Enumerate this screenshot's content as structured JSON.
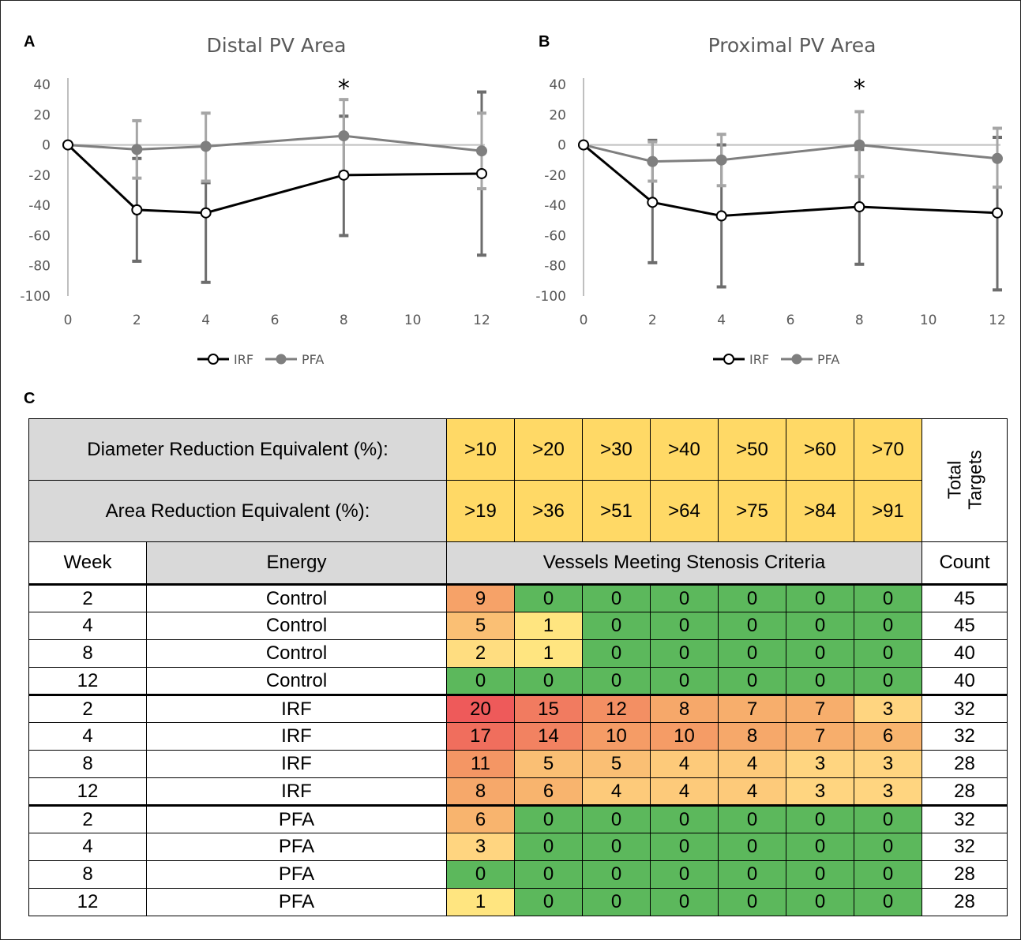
{
  "panels": {
    "A": {
      "label": "A",
      "title": "Distal PV Area"
    },
    "B": {
      "label": "B",
      "title": "Proximal PV Area"
    },
    "C": {
      "label": "C"
    }
  },
  "colors": {
    "irf": "#000000",
    "pfa": "#7f7f7f",
    "axis": "#bfbfbf",
    "yellow_header": "#ffd966",
    "grey_header": "#d9d9d9"
  },
  "chart_data": [
    {
      "type": "line",
      "title": "Distal PV Area",
      "xlabel": "",
      "ylabel": "",
      "xlim": [
        0,
        12
      ],
      "ylim": [
        -100,
        40
      ],
      "x_ticks": [
        0,
        2,
        4,
        6,
        8,
        10,
        12
      ],
      "y_ticks": [
        40,
        20,
        0,
        -20,
        -40,
        -60,
        -80,
        -100
      ],
      "legend": "bottom-center",
      "annotations": [
        {
          "text": "*",
          "x": 8
        }
      ],
      "series": [
        {
          "name": "IRF",
          "marker": "open-circle",
          "x": [
            0,
            2,
            4,
            8,
            12
          ],
          "y": [
            0,
            -43,
            -45,
            -20,
            -19
          ],
          "err_low": [
            0,
            -77,
            -91,
            -60,
            -73
          ],
          "err_high": [
            0,
            -9,
            -25,
            19,
            35
          ]
        },
        {
          "name": "PFA",
          "marker": "filled-circle",
          "x": [
            0,
            2,
            4,
            8,
            12
          ],
          "y": [
            0,
            -3,
            -1,
            6,
            -4
          ],
          "err_low": [
            0,
            -22,
            -24,
            -18,
            -29
          ],
          "err_high": [
            0,
            16,
            21,
            30,
            21
          ]
        }
      ]
    },
    {
      "type": "line",
      "title": "Proximal PV Area",
      "xlabel": "",
      "ylabel": "",
      "xlim": [
        0,
        12
      ],
      "ylim": [
        -100,
        40
      ],
      "x_ticks": [
        0,
        2,
        4,
        6,
        8,
        10,
        12
      ],
      "y_ticks": [
        40,
        20,
        0,
        -20,
        -40,
        -60,
        -80,
        -100
      ],
      "legend": "bottom-center",
      "annotations": [
        {
          "text": "*",
          "x": 8
        }
      ],
      "series": [
        {
          "name": "IRF",
          "marker": "open-circle",
          "x": [
            0,
            2,
            4,
            8,
            12
          ],
          "y": [
            0,
            -38,
            -47,
            -41,
            -45
          ],
          "err_low": [
            0,
            -78,
            -94,
            -79,
            -96
          ],
          "err_high": [
            0,
            3,
            0,
            -3,
            5
          ]
        },
        {
          "name": "PFA",
          "marker": "filled-circle",
          "x": [
            0,
            2,
            4,
            8,
            12
          ],
          "y": [
            0,
            -11,
            -10,
            0,
            -9
          ],
          "err_low": [
            0,
            -24,
            -27,
            -21,
            -28
          ],
          "err_high": [
            0,
            2,
            7,
            22,
            11
          ]
        }
      ]
    },
    {
      "type": "table",
      "header": {
        "diameter_label": "Diameter Reduction Equivalent (%):",
        "diameter": [
          ">10",
          ">20",
          ">30",
          ">40",
          ">50",
          ">60",
          ">70"
        ],
        "area_label": "Area Reduction Equivalent (%):",
        "area": [
          ">19",
          ">36",
          ">51",
          ">64",
          ">75",
          ">84",
          ">91"
        ],
        "total_label": "Total Targets",
        "week_label": "Week",
        "energy_label": "Energy",
        "vessels_label": "Vessels Meeting Stenosis Criteria",
        "count_label": "Count"
      },
      "rows": [
        {
          "week": "2",
          "energy": "Control",
          "values": [
            9,
            0,
            0,
            0,
            0,
            0,
            0
          ],
          "count": 45
        },
        {
          "week": "4",
          "energy": "Control",
          "values": [
            5,
            1,
            0,
            0,
            0,
            0,
            0
          ],
          "count": 45
        },
        {
          "week": "8",
          "energy": "Control",
          "values": [
            2,
            1,
            0,
            0,
            0,
            0,
            0
          ],
          "count": 40
        },
        {
          "week": "12",
          "energy": "Control",
          "values": [
            0,
            0,
            0,
            0,
            0,
            0,
            0
          ],
          "count": 40
        },
        {
          "week": "2",
          "energy": "IRF",
          "values": [
            20,
            15,
            12,
            8,
            7,
            7,
            3
          ],
          "count": 32
        },
        {
          "week": "4",
          "energy": "IRF",
          "values": [
            17,
            14,
            10,
            10,
            8,
            7,
            6
          ],
          "count": 32
        },
        {
          "week": "8",
          "energy": "IRF",
          "values": [
            11,
            5,
            5,
            4,
            4,
            3,
            3
          ],
          "count": 28
        },
        {
          "week": "12",
          "energy": "IRF",
          "values": [
            8,
            6,
            4,
            4,
            4,
            3,
            3
          ],
          "count": 28
        },
        {
          "week": "2",
          "energy": "PFA",
          "values": [
            6,
            0,
            0,
            0,
            0,
            0,
            0
          ],
          "count": 32
        },
        {
          "week": "4",
          "energy": "PFA",
          "values": [
            3,
            0,
            0,
            0,
            0,
            0,
            0
          ],
          "count": 32
        },
        {
          "week": "8",
          "energy": "PFA",
          "values": [
            0,
            0,
            0,
            0,
            0,
            0,
            0
          ],
          "count": 28
        },
        {
          "week": "12",
          "energy": "PFA",
          "values": [
            1,
            0,
            0,
            0,
            0,
            0,
            0
          ],
          "count": 28
        }
      ]
    }
  ]
}
